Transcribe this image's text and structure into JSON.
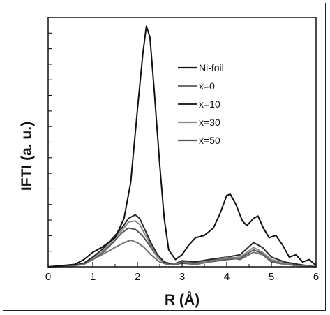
{
  "chart_data": {
    "type": "line",
    "title": "",
    "xlabel": "R (Å)",
    "ylabel": "IFTI (a. u.)",
    "xlim": [
      0,
      6
    ],
    "ylim": [
      0,
      1
    ],
    "x_ticks": [
      "0",
      "1",
      "2",
      "3",
      "4",
      "5",
      "6"
    ],
    "y_tick_labels_shown": false,
    "legend_position": "upper-right",
    "series": [
      {
        "name": "Ni-foil",
        "color": "#111111",
        "points": [
          [
            0,
            0
          ],
          [
            0.3,
            0.005
          ],
          [
            0.6,
            0.01
          ],
          [
            0.8,
            0.03
          ],
          [
            1.0,
            0.06
          ],
          [
            1.2,
            0.08
          ],
          [
            1.5,
            0.12
          ],
          [
            1.7,
            0.2
          ],
          [
            1.85,
            0.35
          ],
          [
            2.0,
            0.65
          ],
          [
            2.12,
            0.88
          ],
          [
            2.2,
            0.995
          ],
          [
            2.28,
            0.95
          ],
          [
            2.38,
            0.72
          ],
          [
            2.5,
            0.42
          ],
          [
            2.6,
            0.2
          ],
          [
            2.7,
            0.07
          ],
          [
            2.85,
            0.03
          ],
          [
            3.0,
            0.05
          ],
          [
            3.15,
            0.09
          ],
          [
            3.3,
            0.12
          ],
          [
            3.5,
            0.13
          ],
          [
            3.7,
            0.16
          ],
          [
            3.85,
            0.22
          ],
          [
            4.0,
            0.295
          ],
          [
            4.08,
            0.3
          ],
          [
            4.2,
            0.26
          ],
          [
            4.35,
            0.19
          ],
          [
            4.45,
            0.17
          ],
          [
            4.6,
            0.2
          ],
          [
            4.7,
            0.21
          ],
          [
            4.82,
            0.16
          ],
          [
            4.95,
            0.12
          ],
          [
            5.1,
            0.13
          ],
          [
            5.25,
            0.09
          ],
          [
            5.4,
            0.04
          ],
          [
            5.55,
            0.05
          ],
          [
            5.7,
            0.02
          ],
          [
            5.85,
            0.03
          ],
          [
            6.0,
            0.005
          ]
        ]
      },
      {
        "name": "x=0",
        "color": "#6f6f6f",
        "points": [
          [
            0,
            0
          ],
          [
            0.5,
            0.003
          ],
          [
            0.8,
            0.01
          ],
          [
            1.0,
            0.03
          ],
          [
            1.2,
            0.05
          ],
          [
            1.5,
            0.08
          ],
          [
            1.7,
            0.1
          ],
          [
            1.85,
            0.11
          ],
          [
            2.0,
            0.1
          ],
          [
            2.15,
            0.08
          ],
          [
            2.3,
            0.05
          ],
          [
            2.5,
            0.02
          ],
          [
            2.7,
            0.008
          ],
          [
            3.0,
            0.02
          ],
          [
            3.3,
            0.01
          ],
          [
            3.6,
            0.02
          ],
          [
            4.0,
            0.04
          ],
          [
            4.3,
            0.03
          ],
          [
            4.6,
            0.06
          ],
          [
            4.8,
            0.05
          ],
          [
            5.0,
            0.02
          ],
          [
            5.3,
            0.01
          ],
          [
            5.6,
            0.005
          ],
          [
            6.0,
            0.0
          ]
        ]
      },
      {
        "name": "x=10",
        "color": "#2a2a2a",
        "points": [
          [
            0,
            0
          ],
          [
            0.5,
            0.004
          ],
          [
            0.8,
            0.015
          ],
          [
            1.0,
            0.04
          ],
          [
            1.2,
            0.07
          ],
          [
            1.45,
            0.12
          ],
          [
            1.65,
            0.16
          ],
          [
            1.8,
            0.2
          ],
          [
            1.95,
            0.215
          ],
          [
            2.05,
            0.2
          ],
          [
            2.15,
            0.16
          ],
          [
            2.3,
            0.1
          ],
          [
            2.45,
            0.05
          ],
          [
            2.6,
            0.02
          ],
          [
            2.8,
            0.01
          ],
          [
            3.0,
            0.025
          ],
          [
            3.3,
            0.02
          ],
          [
            3.6,
            0.03
          ],
          [
            4.0,
            0.04
          ],
          [
            4.3,
            0.05
          ],
          [
            4.6,
            0.1
          ],
          [
            4.8,
            0.08
          ],
          [
            5.0,
            0.04
          ],
          [
            5.3,
            0.02
          ],
          [
            5.6,
            0.01
          ],
          [
            6.0,
            0.0
          ]
        ]
      },
      {
        "name": "x=30",
        "color": "#8a8a8a",
        "points": [
          [
            0,
            0
          ],
          [
            0.5,
            0.003
          ],
          [
            0.8,
            0.012
          ],
          [
            1.0,
            0.035
          ],
          [
            1.2,
            0.06
          ],
          [
            1.45,
            0.11
          ],
          [
            1.65,
            0.15
          ],
          [
            1.8,
            0.185
          ],
          [
            1.95,
            0.19
          ],
          [
            2.05,
            0.175
          ],
          [
            2.15,
            0.14
          ],
          [
            2.3,
            0.09
          ],
          [
            2.45,
            0.04
          ],
          [
            2.6,
            0.015
          ],
          [
            2.8,
            0.01
          ],
          [
            3.0,
            0.02
          ],
          [
            3.3,
            0.015
          ],
          [
            3.6,
            0.025
          ],
          [
            4.0,
            0.035
          ],
          [
            4.3,
            0.04
          ],
          [
            4.6,
            0.08
          ],
          [
            4.8,
            0.06
          ],
          [
            5.0,
            0.03
          ],
          [
            5.3,
            0.015
          ],
          [
            5.6,
            0.008
          ],
          [
            6.0,
            0.0
          ]
        ]
      },
      {
        "name": "x=50",
        "color": "#555555",
        "points": [
          [
            0,
            0
          ],
          [
            0.5,
            0.003
          ],
          [
            0.8,
            0.012
          ],
          [
            1.0,
            0.03
          ],
          [
            1.2,
            0.055
          ],
          [
            1.45,
            0.1
          ],
          [
            1.65,
            0.14
          ],
          [
            1.8,
            0.16
          ],
          [
            1.95,
            0.155
          ],
          [
            2.05,
            0.14
          ],
          [
            2.15,
            0.12
          ],
          [
            2.3,
            0.08
          ],
          [
            2.45,
            0.04
          ],
          [
            2.6,
            0.015
          ],
          [
            2.8,
            0.008
          ],
          [
            3.0,
            0.015
          ],
          [
            3.3,
            0.01
          ],
          [
            3.6,
            0.02
          ],
          [
            4.0,
            0.03
          ],
          [
            4.3,
            0.035
          ],
          [
            4.6,
            0.07
          ],
          [
            4.8,
            0.055
          ],
          [
            5.0,
            0.025
          ],
          [
            5.3,
            0.012
          ],
          [
            5.6,
            0.006
          ],
          [
            6.0,
            0.0
          ]
        ]
      }
    ]
  }
}
